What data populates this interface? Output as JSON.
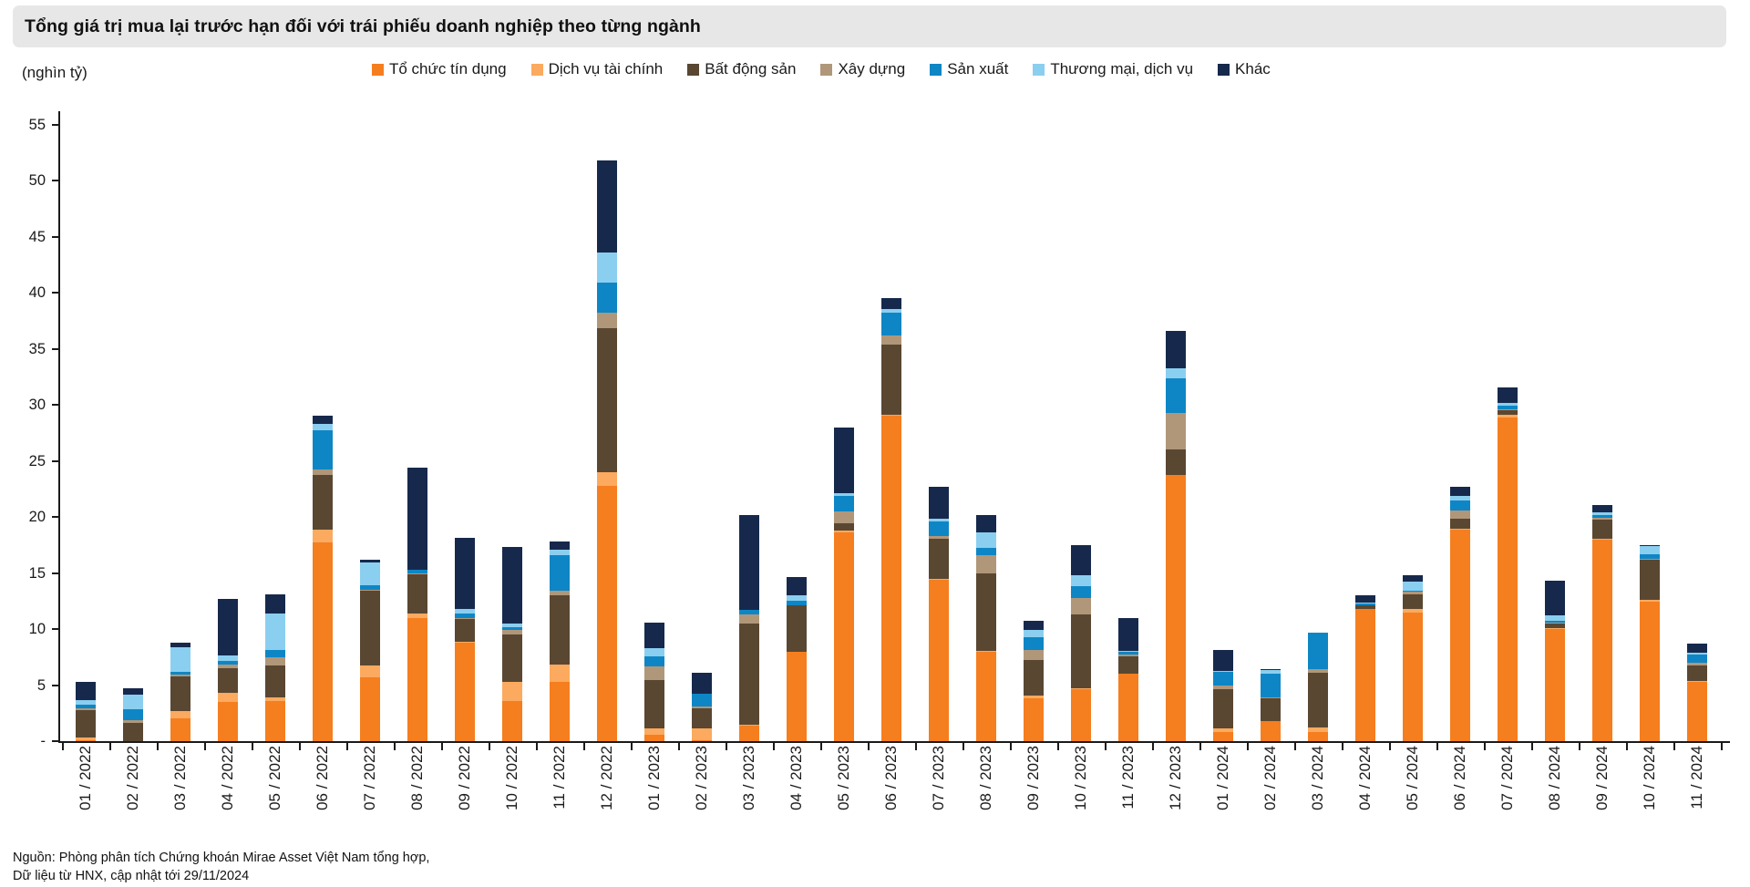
{
  "header": {
    "title": "Tổng giá trị mua lại trước hạn đối với trái phiếu doanh nghiệp theo từng ngành"
  },
  "axis": {
    "unit_label": "(nghìn tỷ)",
    "y_tick_values": [
      55,
      50,
      45,
      40,
      35,
      30,
      25,
      20,
      15,
      10,
      5,
      0
    ],
    "y_tick_labels": [
      "55",
      "50",
      "45",
      "40",
      "35",
      "30",
      "25",
      "20",
      "15",
      "10",
      "5",
      "-"
    ]
  },
  "source": {
    "line1": "Nguồn: Phòng phân tích Chứng khoán Mirae Asset Việt Nam tổng hợp,",
    "line2": "Dữ liệu từ HNX, cập nhật tới 29/11/2024"
  },
  "chart_data": {
    "type": "bar",
    "subtype": "stacked-vertical",
    "title": "Tổng giá trị mua lại trước hạn đối với trái phiếu doanh nghiệp theo từng ngành",
    "ylabel": "(nghìn tỷ)",
    "ylim": [
      0,
      55
    ],
    "y_tick_step": 5,
    "grid": false,
    "legend_position": "top",
    "categories": [
      "01 / 2022",
      "02 / 2022",
      "03 / 2022",
      "04 / 2022",
      "05 / 2022",
      "06 / 2022",
      "07 / 2022",
      "08 / 2022",
      "09 / 2022",
      "10 / 2022",
      "11 / 2022",
      "12 / 2022",
      "01 / 2023",
      "02 / 2023",
      "03 / 2023",
      "04 / 2023",
      "05 / 2023",
      "06 / 2023",
      "07 / 2023",
      "08 / 2023",
      "09 / 2023",
      "10 / 2023",
      "11 / 2023",
      "12 / 2023",
      "01 / 2024",
      "02 / 2024",
      "03 / 2024",
      "04 / 2024",
      "05 / 2024",
      "06 / 2024",
      "07 / 2024",
      "08 / 2024",
      "09 / 2024",
      "10 / 2024",
      "11 / 2024"
    ],
    "series": [
      {
        "name": "Tổ chức tín dụng",
        "color": "#F57E1F",
        "values": [
          0.1,
          0.0,
          2.0,
          3.5,
          3.6,
          17.7,
          5.7,
          11.0,
          8.8,
          3.55,
          5.3,
          22.8,
          0.6,
          0.1,
          1.4,
          8.0,
          18.6,
          29.0,
          14.4,
          8.0,
          3.8,
          4.6,
          6.0,
          23.7,
          0.85,
          1.8,
          0.85,
          11.75,
          11.5,
          18.9,
          28.9,
          10.0,
          18.0,
          12.4,
          5.3
        ]
      },
      {
        "name": "Dịch vụ tài chính",
        "color": "#FBAA5F",
        "values": [
          0.2,
          0.0,
          0.7,
          0.8,
          0.3,
          1.2,
          1.05,
          0.4,
          0.1,
          1.75,
          1.5,
          1.2,
          0.5,
          1.0,
          0.1,
          0.0,
          0.15,
          0.1,
          0.1,
          0.05,
          0.3,
          0.15,
          0.05,
          0.05,
          0.25,
          0.0,
          0.4,
          0.05,
          0.25,
          0.05,
          0.2,
          0.05,
          0.05,
          0.2,
          0.05
        ]
      },
      {
        "name": "Bất động sản",
        "color": "#594732",
        "values": [
          2.5,
          1.6,
          3.1,
          2.2,
          2.85,
          4.8,
          6.65,
          3.5,
          2.0,
          4.2,
          6.2,
          12.8,
          4.35,
          1.8,
          8.95,
          4.1,
          0.7,
          6.3,
          3.55,
          6.9,
          3.1,
          6.55,
          1.55,
          2.3,
          3.55,
          2.0,
          4.85,
          0.3,
          1.35,
          0.9,
          0.45,
          0.4,
          1.7,
          3.55,
          1.4
        ]
      },
      {
        "name": "Xây dựng",
        "color": "#B0977A",
        "values": [
          0.1,
          0.25,
          0.1,
          0.3,
          0.75,
          0.5,
          0.1,
          0.05,
          0.1,
          0.4,
          0.4,
          1.4,
          1.25,
          0.2,
          0.85,
          0.0,
          1.05,
          0.8,
          0.25,
          1.65,
          0.95,
          1.45,
          0.1,
          3.2,
          0.3,
          0.1,
          0.3,
          0.05,
          0.25,
          0.7,
          0.05,
          0.1,
          0.2,
          0.15,
          0.25
        ]
      },
      {
        "name": "Sản xuất",
        "color": "#0E86C5",
        "values": [
          0.35,
          1.0,
          0.3,
          0.35,
          0.65,
          3.55,
          0.4,
          0.3,
          0.4,
          0.25,
          3.2,
          2.7,
          0.9,
          1.1,
          0.4,
          0.4,
          1.35,
          2.0,
          1.3,
          0.65,
          1.1,
          1.1,
          0.3,
          3.1,
          1.2,
          2.1,
          3.3,
          0.1,
          0.1,
          0.9,
          0.3,
          0.2,
          0.25,
          0.4,
          0.7
        ]
      },
      {
        "name": "Thương mại, dịch vụ",
        "color": "#8BCFF0",
        "values": [
          0.4,
          1.3,
          2.2,
          0.5,
          3.2,
          0.55,
          2.0,
          0.05,
          0.4,
          0.3,
          0.5,
          2.7,
          0.7,
          0.0,
          0.0,
          0.5,
          0.25,
          0.3,
          0.2,
          1.4,
          0.65,
          0.95,
          0.05,
          0.9,
          0.1,
          0.35,
          0.0,
          0.1,
          0.75,
          0.45,
          0.25,
          0.45,
          0.2,
          0.7,
          0.15
        ]
      },
      {
        "name": "Khác",
        "color": "#16294C",
        "values": [
          1.6,
          0.55,
          0.4,
          5.0,
          1.7,
          0.7,
          0.3,
          9.1,
          6.3,
          6.85,
          0.7,
          8.2,
          2.3,
          1.9,
          8.5,
          1.65,
          5.85,
          1.0,
          2.85,
          1.5,
          0.8,
          2.7,
          2.95,
          3.3,
          1.9,
          0.05,
          0.0,
          0.65,
          0.6,
          0.8,
          1.4,
          3.1,
          0.65,
          0.1,
          0.85
        ]
      }
    ]
  }
}
